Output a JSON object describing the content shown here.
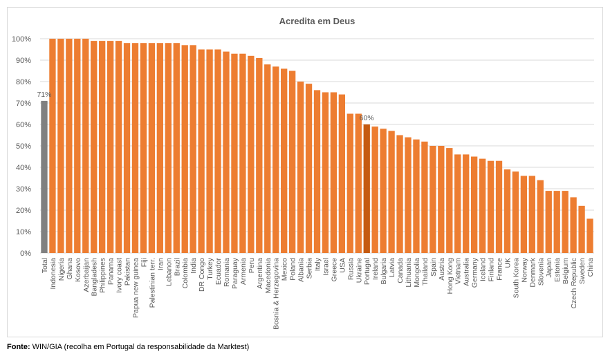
{
  "source": {
    "label": "Fonte:",
    "text": "WIN/GIA (recolha em Portugal da responsabilidade da Marktest)"
  },
  "colors": {
    "default_bar": "#ED7D31",
    "total_bar": "#808080",
    "highlight_bar": "#C55A11",
    "grid": "#d9d9d9",
    "text": "#595959"
  },
  "chart_data": {
    "type": "bar",
    "title": "Acredita em Deus",
    "xlabel": "",
    "ylabel": "",
    "ylim": [
      0,
      100
    ],
    "yticks": [
      "0%",
      "10%",
      "20%",
      "30%",
      "40%",
      "50%",
      "60%",
      "70%",
      "80%",
      "90%",
      "100%"
    ],
    "grid": true,
    "categories": [
      "Total",
      "Indonesia",
      "Nigeria",
      "Ghana",
      "Kosovo",
      "Azerbaijan",
      "Bangladesh",
      "Philippines",
      "Panama",
      "Ivory coast",
      "Pakistan",
      "Papua new guinea",
      "Fiji",
      "Palestinian terr.",
      "Iran",
      "Lebanon",
      "Brazil",
      "Colombia",
      "India",
      "DR Congo",
      "Turkey",
      "Ecuador",
      "Romania",
      "Paraguay",
      "Armenia",
      "Peru",
      "Argentina",
      "Macedonia",
      "Bosnia & Herzegovina",
      "Mexico",
      "Poland",
      "Albania",
      "Serbia",
      "Italy",
      "Israel",
      "Greece",
      "USA",
      "Russia",
      "Ukraine",
      "Portugal",
      "Ireland",
      "Bulgaria",
      "Latvia",
      "Canada",
      "Lithuania",
      "Mongolia",
      "Thailand",
      "Spain",
      "Austria",
      "Hong Kong",
      "Vietnam",
      "Australia",
      "Germany",
      "Iceland",
      "Finland",
      "France",
      "UK",
      "South Korea",
      "Norway",
      "Denmark",
      "Slovenia",
      "Japan",
      "Estonia",
      "Belgium",
      "Czech Republic",
      "Sweden",
      "China"
    ],
    "values": [
      71,
      100,
      100,
      100,
      100,
      100,
      99,
      99,
      99,
      99,
      98,
      98,
      98,
      98,
      98,
      98,
      98,
      97,
      97,
      95,
      95,
      95,
      94,
      93,
      93,
      92,
      91,
      88,
      87,
      86,
      85,
      80,
      79,
      76,
      75,
      75,
      74,
      65,
      65,
      60,
      59,
      58,
      57,
      55,
      54,
      53,
      52,
      50,
      50,
      49,
      46,
      46,
      45,
      44,
      43,
      43,
      39,
      38,
      36,
      36,
      34,
      29,
      29,
      29,
      26,
      22,
      16
    ],
    "data_labels": [
      {
        "category": "Total",
        "text": "71%"
      },
      {
        "category": "Portugal",
        "text": "60%"
      }
    ],
    "highlight": {
      "Total": "total_bar",
      "Portugal": "highlight_bar"
    }
  }
}
